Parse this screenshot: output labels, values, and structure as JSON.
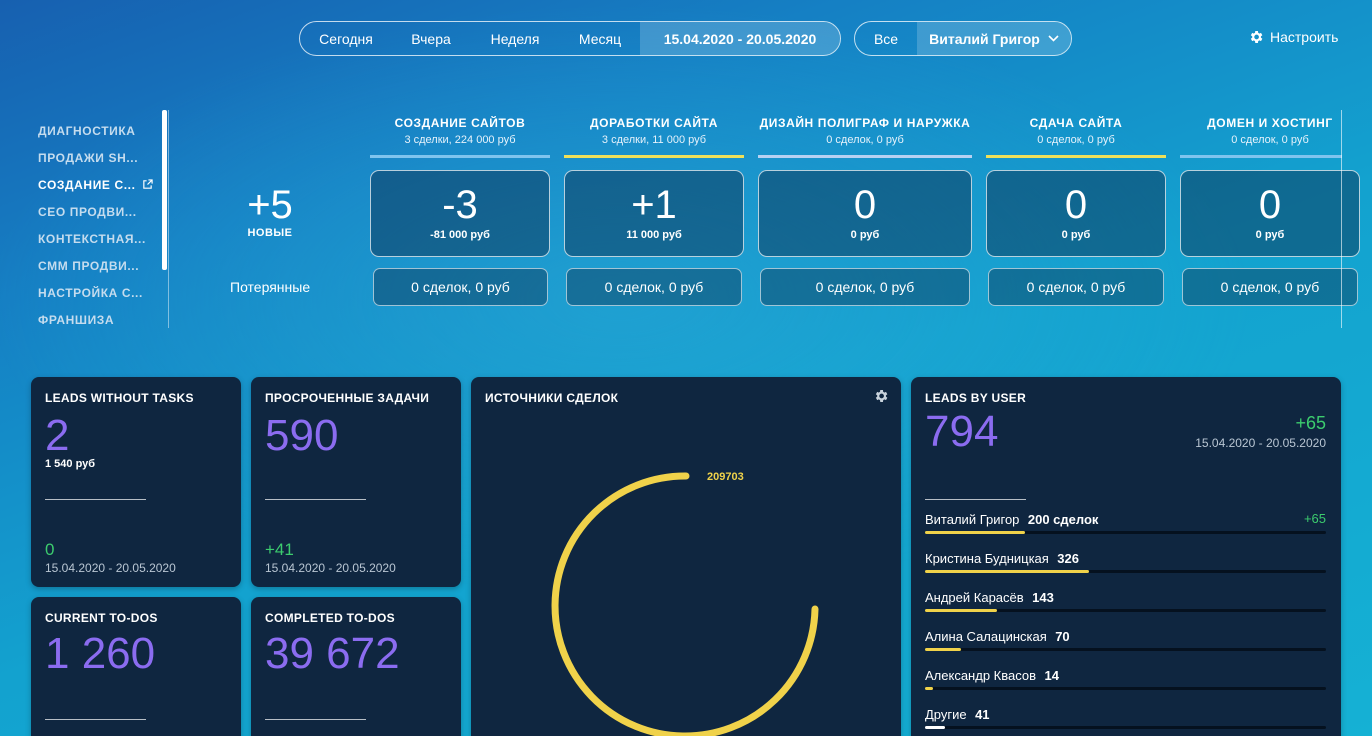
{
  "filters": {
    "periods": [
      "Сегодня",
      "Вчера",
      "Неделя",
      "Месяц"
    ],
    "date_range": "15.04.2020 - 20.05.2020",
    "user_all": "Все",
    "user_selected": "Виталий Григор",
    "settings_label": "Настроить"
  },
  "menu": {
    "items": [
      "ДИАГНОСТИКА",
      "ПРОДАЖИ SH...",
      "СОЗДАНИЕ С...",
      "СЕО ПРОДВИ...",
      "КОНТЕКСТНАЯ...",
      "СММ ПРОДВИ...",
      "НАСТРОЙКА С...",
      "ФРАНШИЗА"
    ],
    "active_index": 2
  },
  "funnel": {
    "new_value": "+5",
    "new_label": "НОВЫЕ",
    "lost_label": "Потерянные",
    "stages": [
      {
        "title": "СОЗДАНИЕ САЙТОВ",
        "sub": "3 сделки, 224 000 руб",
        "value": "-3",
        "sum": "-81 000 руб",
        "lost": "0 сделок, 0 руб",
        "color": "#7fc4ee"
      },
      {
        "title": "ДОРАБОТКИ САЙТА",
        "sub": "3 сделки, 11 000 руб",
        "value": "+1",
        "sum": "11 000 руб",
        "lost": "0 сделок, 0 руб",
        "color": "#efe05a"
      },
      {
        "title": "ДИЗАЙН ПОЛИГРАФ И НАРУЖКА",
        "sub": "0 сделок, 0 руб",
        "value": "0",
        "sum": "0 руб",
        "lost": "0 сделок, 0 руб",
        "color": "#b7d1f2"
      },
      {
        "title": "СДАЧА САЙТА",
        "sub": "0 сделок, 0 руб",
        "value": "0",
        "sum": "0 руб",
        "lost": "0 сделок, 0 руб",
        "color": "#efe05a"
      },
      {
        "title": "ДОМЕН И ХОСТИНГ",
        "sub": "0 сделок, 0 руб",
        "value": "0",
        "sum": "0 руб",
        "lost": "0 сделок, 0 руб",
        "color": "#7fc4ee"
      }
    ]
  },
  "widgets": {
    "leads_without_tasks": {
      "title": "LEADS WITHOUT TASKS",
      "value": "2",
      "sum": "1 540 руб",
      "delta": "0",
      "date": "15.04.2020 - 20.05.2020"
    },
    "overdue_tasks": {
      "title": "ПРОСРОЧЕННЫЕ ЗАДАЧИ",
      "value": "590",
      "delta": "+41",
      "date": "15.04.2020 - 20.05.2020"
    },
    "current_todos": {
      "title": "CURRENT TO-DOS",
      "value": "1 260"
    },
    "completed_todos": {
      "title": "COMPLETED TO-DOS",
      "value": "39 672"
    },
    "sources": {
      "title": "ИСТОЧНИКИ СДЕЛОК",
      "ring_label": "209703",
      "ring_color": "#f0d24a"
    },
    "leads_by_user": {
      "title": "LEADS BY USER",
      "value": "794",
      "delta": "+65",
      "date": "15.04.2020 - 20.05.2020",
      "users": [
        {
          "name": "Виталий Григор",
          "count": "200 сделок",
          "delta": "+65",
          "share": 0.25
        },
        {
          "name": "Кристина Будницкая",
          "count": "326",
          "delta": "",
          "share": 0.41
        },
        {
          "name": "Андрей Карасёв",
          "count": "143",
          "delta": "",
          "share": 0.18
        },
        {
          "name": "Алина Салацинская",
          "count": "70",
          "delta": "",
          "share": 0.09
        },
        {
          "name": "Александр Квасов",
          "count": "14",
          "delta": "",
          "share": 0.02
        },
        {
          "name": "Другие",
          "count": "41",
          "delta": "",
          "share": 0.05
        }
      ]
    }
  }
}
